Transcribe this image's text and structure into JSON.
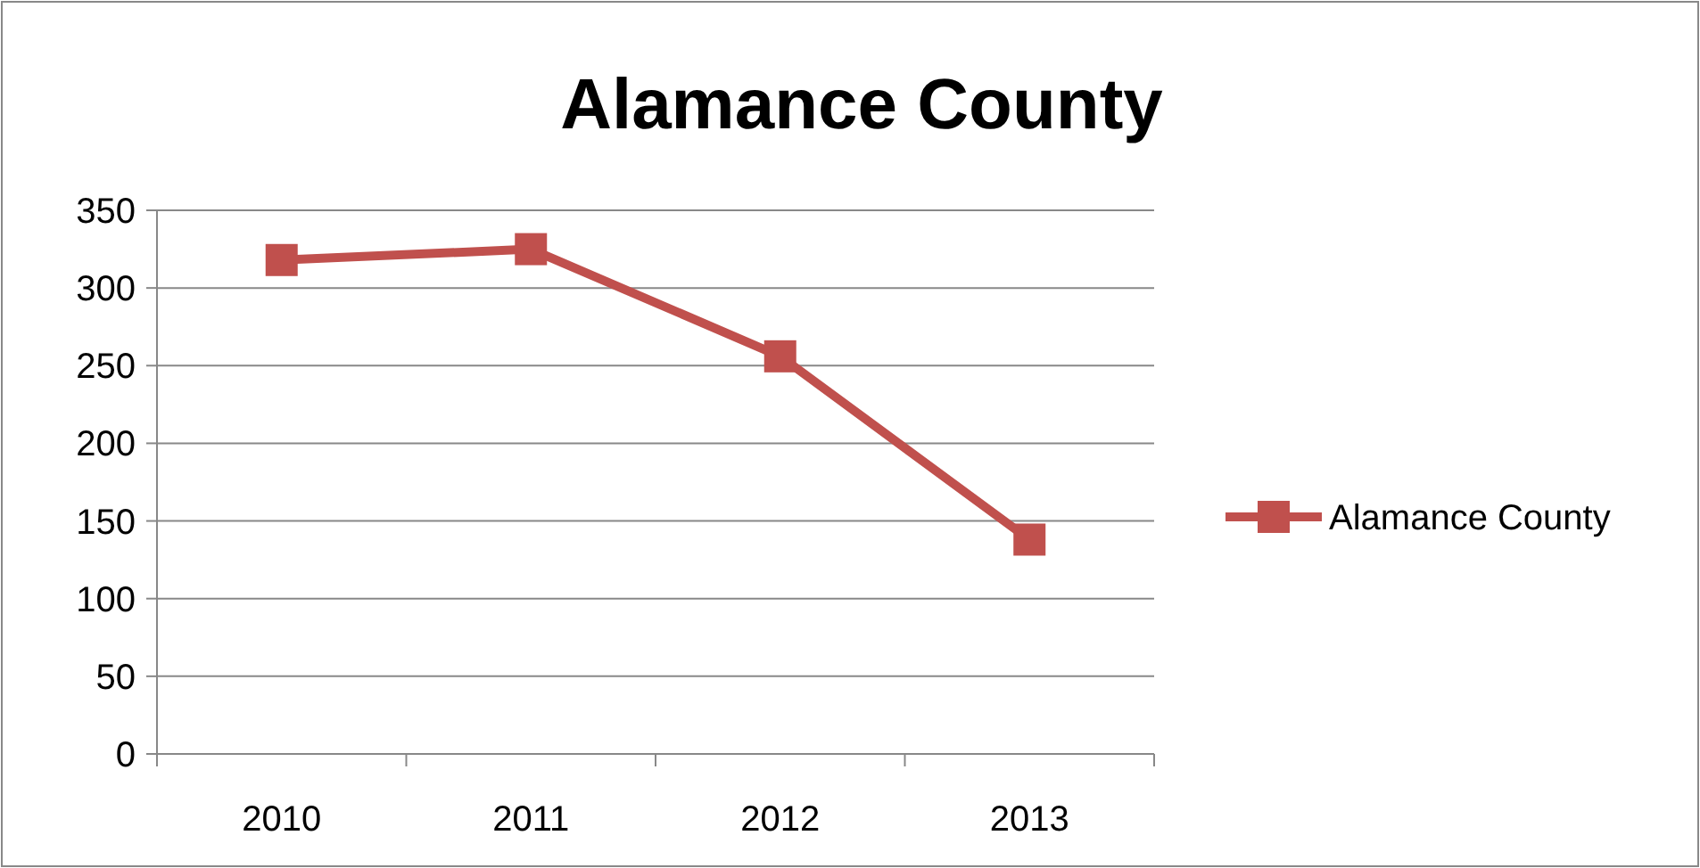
{
  "chart_data": {
    "type": "line",
    "title": "Alamance County",
    "categories": [
      "2010",
      "2011",
      "2012",
      "2013"
    ],
    "series": [
      {
        "name": "Alamance County",
        "color": "#c0504d",
        "values": [
          318,
          325,
          256,
          138
        ]
      }
    ],
    "ylim": [
      0,
      350
    ],
    "yticks": [
      0,
      50,
      100,
      150,
      200,
      250,
      300,
      350
    ],
    "grid": "y",
    "legend": "right",
    "marker": "square",
    "line_style": "solid"
  }
}
